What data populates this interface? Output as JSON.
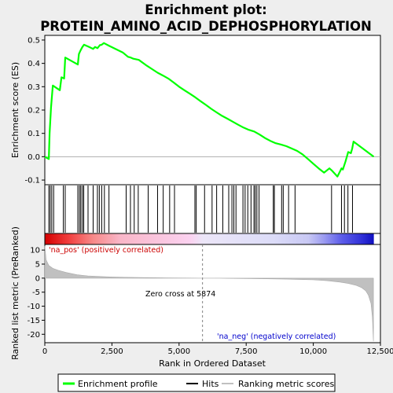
{
  "chart_data": {
    "type": "line",
    "title_line1": "Enrichment plot:",
    "title_line2": "PROTEIN_AMINO_ACID_DEPHOSPHORYLATION",
    "es_ylabel": "Enrichment score (ES)",
    "rank_ylabel": "Ranked list metric (PreRanked)",
    "xlabel": "Rank in Ordered Dataset",
    "xlim": [
      0,
      12500
    ],
    "x_ticks": [
      0,
      2500,
      5000,
      7500,
      10000,
      12500
    ],
    "x_tick_labels": [
      "0",
      "2,500",
      "5,000",
      "7,500",
      "10,000",
      "12,500"
    ],
    "es_ylim": [
      -0.12,
      0.52
    ],
    "es_ticks": [
      -0.1,
      0.0,
      0.1,
      0.2,
      0.3,
      0.4,
      0.5
    ],
    "es_tick_labels": [
      "-0.1",
      "0.0",
      "0.1",
      "0.2",
      "0.3",
      "0.4",
      "0.5"
    ],
    "rank_ylim": [
      -23,
      12
    ],
    "rank_ticks": [
      10,
      5,
      0,
      -5,
      -10,
      -15,
      -20
    ],
    "rank_tick_labels": [
      "10",
      "5",
      "0",
      "-5",
      "-10",
      "-15",
      "-20"
    ],
    "enrichment_profile": {
      "name": "Enrichment profile",
      "color": "#00ff00",
      "x": [
        0,
        150,
        180,
        230,
        300,
        560,
        620,
        720,
        760,
        1230,
        1270,
        1330,
        1400,
        1460,
        1650,
        1800,
        1870,
        1960,
        2050,
        2120,
        2200,
        2400,
        2900,
        3100,
        3200,
        3300,
        3500,
        3800,
        4000,
        4200,
        4400,
        4600,
        4800,
        5000,
        5200,
        5400,
        5600,
        5800,
        6000,
        6200,
        6400,
        6600,
        6800,
        7000,
        7200,
        7400,
        7600,
        7800,
        8000,
        8200,
        8400,
        8600,
        8800,
        9000,
        9200,
        9400,
        9600,
        9800,
        10000,
        10200,
        10400,
        10600,
        10700,
        10900,
        11050,
        11100,
        11200,
        11300,
        11400,
        11450,
        11500,
        12250
      ],
      "y": [
        0.0,
        -0.01,
        0.1,
        0.21,
        0.305,
        0.285,
        0.34,
        0.335,
        0.425,
        0.395,
        0.44,
        0.455,
        0.47,
        0.48,
        0.47,
        0.462,
        0.47,
        0.465,
        0.478,
        0.48,
        0.487,
        0.475,
        0.447,
        0.428,
        0.425,
        0.42,
        0.415,
        0.39,
        0.375,
        0.36,
        0.348,
        0.335,
        0.318,
        0.3,
        0.285,
        0.27,
        0.255,
        0.238,
        0.222,
        0.205,
        0.19,
        0.175,
        0.163,
        0.15,
        0.137,
        0.125,
        0.115,
        0.108,
        0.095,
        0.08,
        0.068,
        0.058,
        0.052,
        0.045,
        0.035,
        0.025,
        0.01,
        -0.01,
        -0.03,
        -0.05,
        -0.068,
        -0.05,
        -0.06,
        -0.085,
        -0.05,
        -0.055,
        -0.02,
        0.02,
        0.015,
        0.035,
        0.065,
        0.0
      ]
    },
    "hits": [
      150,
      200,
      260,
      330,
      690,
      760,
      1230,
      1290,
      1340,
      1400,
      1450,
      1610,
      1800,
      1960,
      2030,
      2120,
      2220,
      2390,
      3030,
      3190,
      3330,
      3480,
      3850,
      4200,
      4410,
      4650,
      4830,
      5590,
      5640,
      5950,
      6230,
      6400,
      6630,
      6850,
      6970,
      7040,
      7120,
      7380,
      7460,
      7560,
      7680,
      7790,
      7840,
      7900,
      7980,
      8510,
      8550,
      8820,
      8880,
      9080,
      9320,
      10680,
      11050,
      11160,
      11290,
      11460
    ],
    "ranked_metric": {
      "name": "Ranking metric scores",
      "x": [
        0,
        50,
        150,
        300,
        500,
        800,
        1200,
        1600,
        2000,
        2500,
        3000,
        3500,
        4000,
        4500,
        5000,
        5500,
        5874,
        6500,
        7000,
        8000,
        9000,
        10000,
        10500,
        11000,
        11300,
        11600,
        11800,
        11950,
        12050,
        12150,
        12200,
        12240
      ],
      "y": [
        11.5,
        6.5,
        4.5,
        3.5,
        2.8,
        2.0,
        1.2,
        0.8,
        0.6,
        0.4,
        0.3,
        0.2,
        0.15,
        0.1,
        0.05,
        0.02,
        0.0,
        -0.05,
        -0.1,
        -0.2,
        -0.35,
        -0.6,
        -0.9,
        -1.4,
        -1.9,
        -2.6,
        -3.4,
        -4.5,
        -6.0,
        -9.0,
        -14.0,
        -22.5
      ]
    },
    "zero_cross_label": "Zero cross at 5874",
    "zero_cross_x": 5874,
    "pos_label": "'na_pos' (positively correlated)",
    "neg_label": "'na_neg' (negatively correlated)",
    "legend": [
      "Enrichment profile",
      "Hits",
      "Ranking metric scores"
    ],
    "colors": {
      "profile": "#00ff00",
      "hits": "#000000",
      "metric": "#c0c0c0",
      "pos_text": "#cc0000",
      "neg_text": "#0000cc",
      "background": "#eeeeee",
      "panel": "#ffffff",
      "zero_line": "#808080"
    },
    "colorbar": {
      "x_end": 12240,
      "stops": [
        {
          "x": 0,
          "color": "#d40000"
        },
        {
          "x": 900,
          "color": "#f24040"
        },
        {
          "x": 1800,
          "color": "#f78a8a"
        },
        {
          "x": 2800,
          "color": "#f9b6c8"
        },
        {
          "x": 5400,
          "color": "#fbd2f0"
        },
        {
          "x": 5874,
          "color": "#ece6f8"
        },
        {
          "x": 8500,
          "color": "#dcdcf8"
        },
        {
          "x": 9800,
          "color": "#c8c8f4"
        },
        {
          "x": 10400,
          "color": "#9a9af0"
        },
        {
          "x": 11000,
          "color": "#6060ea"
        },
        {
          "x": 11800,
          "color": "#3030d8"
        },
        {
          "x": 12240,
          "color": "#1010c0"
        }
      ]
    }
  }
}
